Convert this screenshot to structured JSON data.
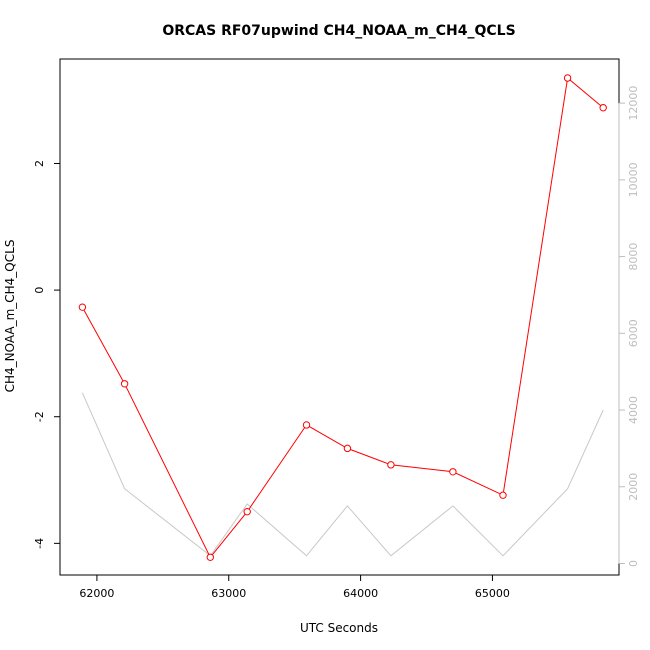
{
  "chart_data": {
    "type": "line",
    "title": "ORCAS RF07upwind CH4_NOAA_m_CH4_QCLS",
    "xlabel": "UTC Seconds",
    "ylabel": "CH4_NOAA_m_CH4_QCLS",
    "xlim": [
      61720,
      65960
    ],
    "ylim": [
      -4.5,
      3.65
    ],
    "y2lim": [
      -300,
      13150
    ],
    "x_ticks": [
      62000,
      63000,
      64000,
      65000
    ],
    "x_tick_labels": [
      "62000",
      "63000",
      "64000",
      "65000"
    ],
    "y_ticks": [
      -4,
      -2,
      0,
      2
    ],
    "y_tick_labels": [
      "-4",
      "-2",
      "0",
      "2"
    ],
    "y2_ticks": [
      0,
      2000,
      4000,
      6000,
      8000,
      10000,
      12000
    ],
    "y2_tick_labels": [
      "0",
      "2000",
      "4000",
      "6000",
      "8000",
      "10000",
      "12000"
    ],
    "series": [
      {
        "color": "#ff0000",
        "axis": "left",
        "markers": "open-circle",
        "x": [
          61890,
          62210,
          62860,
          63140,
          63590,
          63900,
          64230,
          64700,
          65080,
          65570,
          65840
        ],
        "y": [
          -0.27,
          -1.48,
          -4.22,
          -3.5,
          -2.13,
          -2.5,
          -2.76,
          -2.87,
          -3.24,
          3.35,
          2.88
        ]
      },
      {
        "color": "#c8c8c8",
        "axis": "right",
        "markers": "none",
        "x": [
          61890,
          62210,
          62860,
          63140,
          63590,
          63900,
          64230,
          64700,
          65080,
          65570,
          65840
        ],
        "y": [
          4450,
          1950,
          200,
          1550,
          200,
          1500,
          200,
          1500,
          200,
          1950,
          4000
        ]
      }
    ],
    "grid": false
  }
}
